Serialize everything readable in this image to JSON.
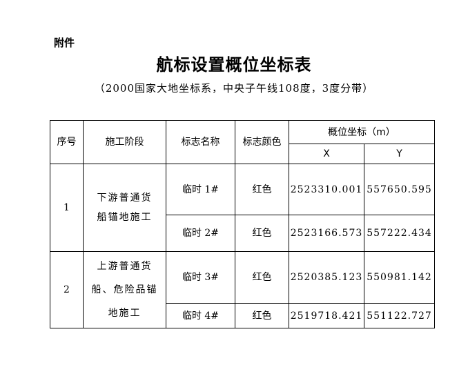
{
  "attachment": "附件",
  "title": "航标设置概位坐标表",
  "subtitle": "（2000国家大地坐标系，中央子午线108度，3度分带）",
  "table": {
    "headers": {
      "no": "序号",
      "stage": "施工阶段",
      "name": "标志名称",
      "color": "标志颜色",
      "coord": "概位坐标（m）",
      "x": "X",
      "y": "Y"
    },
    "groups": [
      {
        "no": "1",
        "stage": "下游普通货船锚地施工",
        "rows": [
          {
            "name": "临时 1#",
            "color": "红色",
            "x": "2523310.001",
            "y": "557650.595"
          },
          {
            "name": "临时 2#",
            "color": "红色",
            "x": "2523166.573",
            "y": "557222.434"
          }
        ]
      },
      {
        "no": "2",
        "stage": "上游普通货船、危险品锚地施工",
        "rows": [
          {
            "name": "临时 3#",
            "color": "红色",
            "x": "2520385.123",
            "y": "550981.142"
          },
          {
            "name": "临时 4#",
            "color": "红色",
            "x": "2519718.421",
            "y": "551122.727"
          }
        ]
      }
    ]
  }
}
